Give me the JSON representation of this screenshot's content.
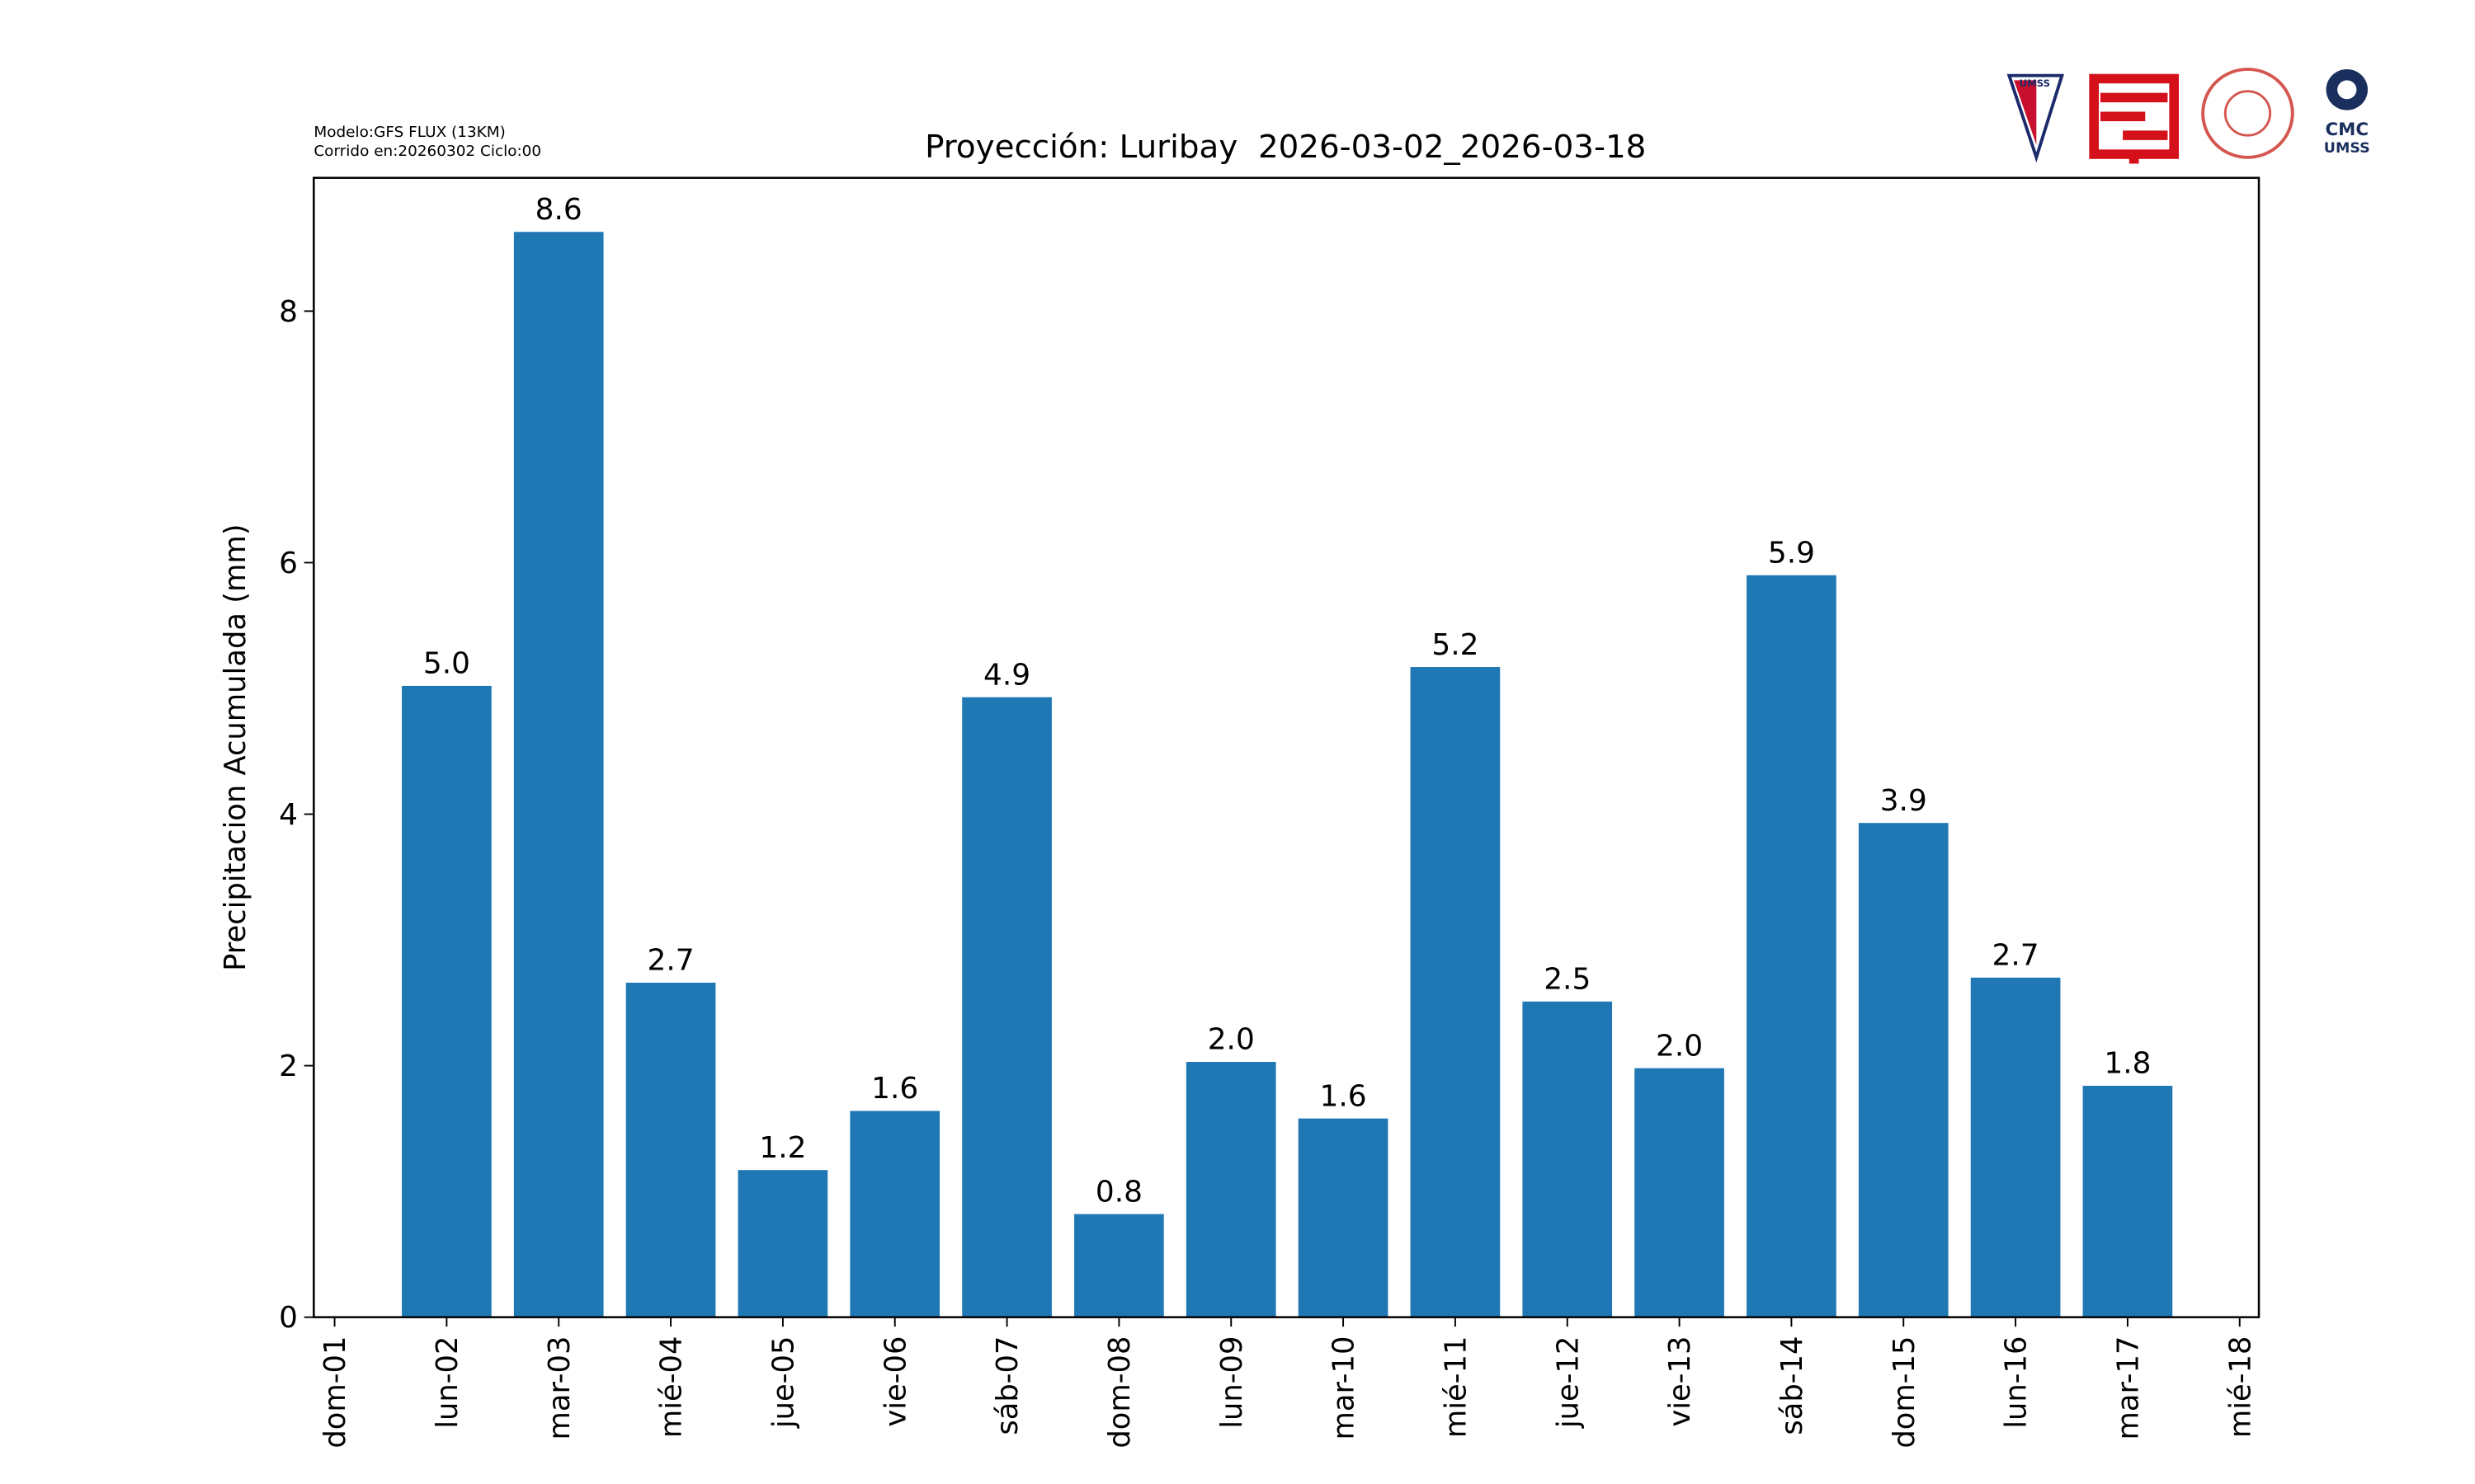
{
  "chart_data": {
    "type": "bar",
    "title": "Proyección: Luribay  2026-03-02_2026-03-18",
    "notes": [
      "Modelo:GFS FLUX (13KM)",
      "Corrido en:20260302 Ciclo:00"
    ],
    "ylabel": "Precipitacion Acumulada (mm)",
    "categories": [
      "dom-01",
      "lun-02",
      "mar-03",
      "mié-04",
      "jue-05",
      "vie-06",
      "sáb-07",
      "dom-08",
      "lun-09",
      "mar-10",
      "mié-11",
      "jue-12",
      "vie-13",
      "sáb-14",
      "dom-15",
      "lun-16",
      "mar-17",
      "mié-18"
    ],
    "values": [
      null,
      5.02,
      8.63,
      2.66,
      1.17,
      1.64,
      4.93,
      0.82,
      2.03,
      1.58,
      5.17,
      2.51,
      1.98,
      5.9,
      3.93,
      2.7,
      1.84,
      null
    ],
    "value_labels": [
      null,
      "5.0",
      "8.6",
      "2.7",
      "1.2",
      "1.6",
      "4.9",
      "0.8",
      "2.0",
      "1.6",
      "5.2",
      "2.5",
      "2.0",
      "5.9",
      "3.9",
      "2.7",
      "1.8",
      null
    ],
    "color": "#1f77b4",
    "ylim": [
      0,
      9.06
    ],
    "yticks": [
      0,
      2,
      4,
      6,
      8
    ],
    "grid": false
  },
  "logos": {
    "umss_shield": "UMSS",
    "cmc": "CMC",
    "cmc_sub": "UMSS"
  }
}
